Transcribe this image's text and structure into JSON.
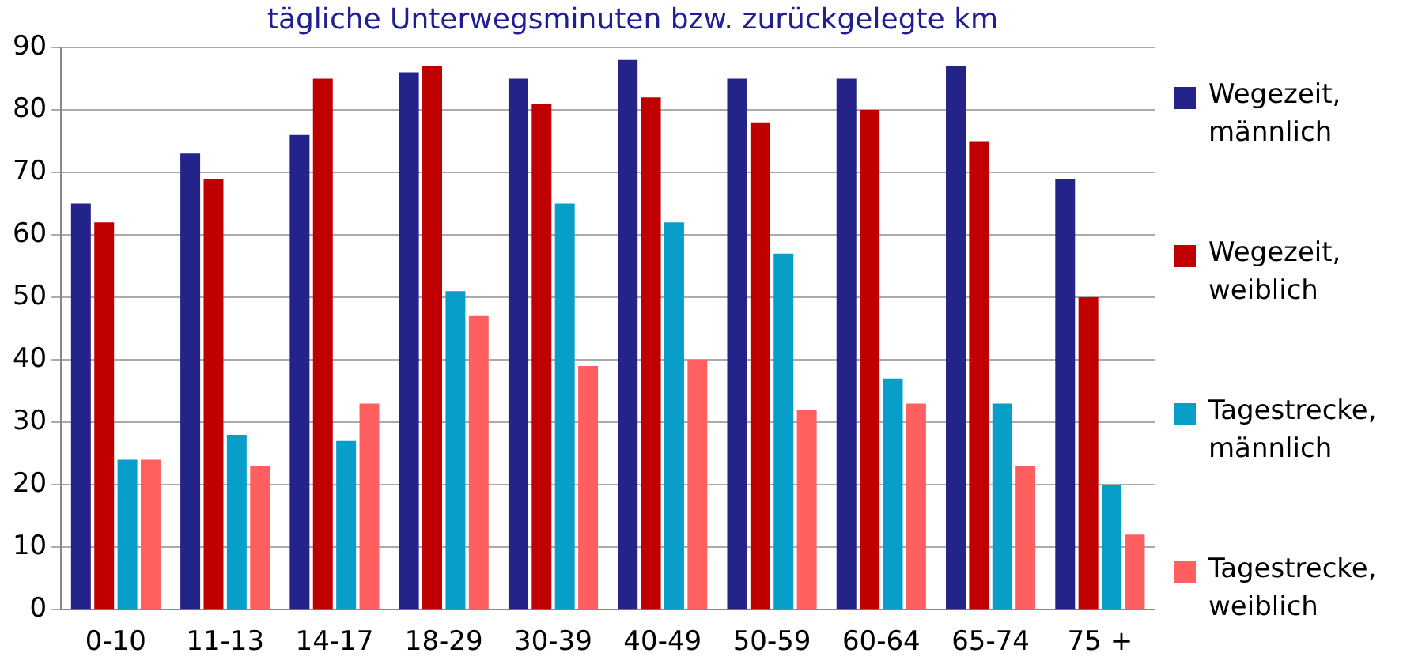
{
  "chart_data": {
    "type": "bar",
    "title": "tägliche Unterwegsminuten bzw. zurückgelegte km",
    "categories": [
      "0-10",
      "11-13",
      "14-17",
      "18-29",
      "30-39",
      "40-49",
      "50-59",
      "60-64",
      "65-74",
      "75 +"
    ],
    "series": [
      {
        "name": "Wegezeit, männlich",
        "color": "#232389",
        "values": [
          65,
          73,
          76,
          86,
          85,
          88,
          85,
          85,
          87,
          69
        ]
      },
      {
        "name": "Wegezeit, weiblich",
        "color": "#c00000",
        "values": [
          62,
          69,
          85,
          87,
          81,
          82,
          78,
          80,
          75,
          50
        ]
      },
      {
        "name": "Tagestrecke, männlich",
        "color": "#079ec9",
        "values": [
          24,
          28,
          27,
          51,
          65,
          62,
          57,
          37,
          33,
          20
        ]
      },
      {
        "name": "Tagestrecke, weiblich",
        "color": "#ff5f5f",
        "values": [
          24,
          23,
          33,
          47,
          39,
          40,
          32,
          33,
          23,
          12
        ]
      }
    ],
    "ylim": [
      0,
      90
    ],
    "yticks": [
      0,
      10,
      20,
      30,
      40,
      50,
      60,
      70,
      80,
      90
    ],
    "grid": "y",
    "legend": "right"
  }
}
